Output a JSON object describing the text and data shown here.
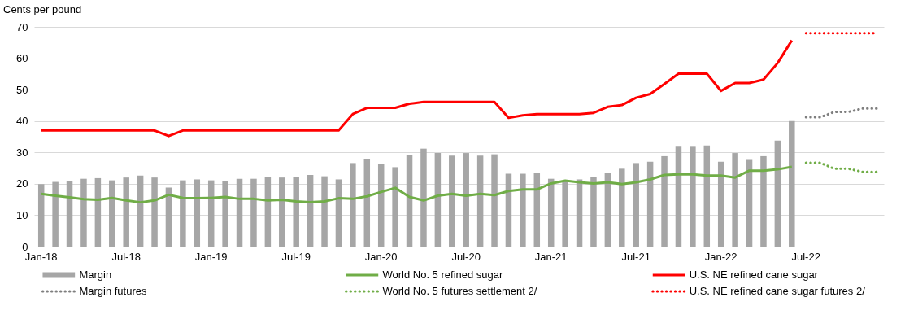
{
  "chart_data": {
    "type": "bar",
    "ylabel": "Cents per pound",
    "categories": [
      "Jan-18",
      null,
      null,
      null,
      null,
      null,
      "Jul-18",
      null,
      null,
      null,
      null,
      null,
      "Jan-19",
      null,
      null,
      null,
      null,
      null,
      "Jul-19",
      null,
      null,
      null,
      null,
      null,
      "Jan-20",
      null,
      null,
      null,
      null,
      null,
      "Jul-20",
      null,
      null,
      null,
      null,
      null,
      "Jan-21",
      null,
      null,
      null,
      null,
      null,
      "Jul-21",
      null,
      null,
      null,
      null,
      null,
      "Jan-22",
      null,
      null,
      null,
      null,
      null,
      "Jul-22",
      null,
      null,
      null,
      null,
      null
    ],
    "ylim": [
      0,
      70
    ],
    "yticks": [
      0,
      10,
      20,
      30,
      40,
      50,
      60,
      70
    ],
    "grid": "y",
    "legend": "bottom",
    "series": [
      {
        "name": "Margin",
        "type": "bar",
        "color": "#a6a6a6",
        "values": [
          19.9,
          20.6,
          21.0,
          21.6,
          21.8,
          21.1,
          22.0,
          22.6,
          22.0,
          18.8,
          21.1,
          21.4,
          21.1,
          21.0,
          21.6,
          21.6,
          22.1,
          22.0,
          22.1,
          22.8,
          22.4,
          21.4,
          26.6,
          27.8,
          26.3,
          25.3,
          29.2,
          31.2,
          29.8,
          29.0,
          29.8,
          29.0,
          29.4,
          23.2,
          23.2,
          23.6,
          21.6,
          21.0,
          21.4,
          22.2,
          23.6,
          24.8,
          26.6,
          27.0,
          28.8,
          31.8,
          31.8,
          32.2,
          27.0,
          29.8,
          27.6,
          28.8,
          33.8,
          40.0,
          null,
          null,
          null,
          null,
          null,
          null
        ]
      },
      {
        "name": "World No. 5 refined sugar",
        "type": "line",
        "line_style": "solid",
        "color": "#70ad47",
        "values": [
          16.8,
          16.2,
          15.7,
          15.1,
          14.9,
          15.5,
          14.7,
          14.1,
          14.7,
          16.5,
          15.5,
          15.4,
          15.5,
          15.8,
          15.2,
          15.2,
          14.7,
          14.9,
          14.4,
          14.1,
          14.4,
          15.4,
          15.2,
          16.0,
          17.4,
          18.7,
          15.8,
          14.7,
          16.2,
          16.8,
          16.2,
          16.8,
          16.4,
          17.7,
          18.2,
          18.2,
          20.1,
          21.0,
          20.5,
          20.1,
          20.5,
          19.9,
          20.5,
          21.4,
          22.8,
          23.0,
          23.0,
          22.6,
          22.6,
          22.0,
          24.2,
          24.2,
          24.6,
          25.4,
          null,
          null,
          null,
          null,
          null,
          null
        ]
      },
      {
        "name": "U.S. NE refined cane sugar",
        "type": "line",
        "line_style": "solid",
        "color": "#ff0000",
        "values": [
          37,
          37,
          37,
          37,
          37,
          37,
          37,
          37,
          37,
          35.2,
          37,
          37,
          37,
          37,
          37,
          37,
          37,
          37,
          37,
          37,
          37,
          37,
          42.2,
          44.2,
          44.2,
          44.2,
          45.5,
          46.1,
          46.1,
          46.1,
          46.1,
          46.1,
          46.1,
          41.0,
          41.8,
          42.2,
          42.2,
          42.2,
          42.2,
          42.6,
          44.5,
          45.1,
          47.4,
          48.6,
          51.8,
          55.1,
          55.1,
          55.1,
          49.6,
          52.1,
          52.1,
          53.2,
          58.5,
          65.7,
          null,
          null,
          null,
          null,
          null,
          null
        ]
      },
      {
        "name": "Margin futures",
        "type": "line",
        "line_style": "dotted",
        "color": "#7f7f7f",
        "values": [
          null,
          null,
          null,
          null,
          null,
          null,
          null,
          null,
          null,
          null,
          null,
          null,
          null,
          null,
          null,
          null,
          null,
          null,
          null,
          null,
          null,
          null,
          null,
          null,
          null,
          null,
          null,
          null,
          null,
          null,
          null,
          null,
          null,
          null,
          null,
          null,
          null,
          null,
          null,
          null,
          null,
          null,
          null,
          null,
          null,
          null,
          null,
          null,
          null,
          null,
          null,
          null,
          null,
          null,
          41.2,
          41.2,
          42.9,
          42.9,
          44.0,
          44.0
        ]
      },
      {
        "name": "World No. 5 futures settlement 2/",
        "type": "line",
        "line_style": "dotted",
        "color": "#70ad47",
        "values": [
          null,
          null,
          null,
          null,
          null,
          null,
          null,
          null,
          null,
          null,
          null,
          null,
          null,
          null,
          null,
          null,
          null,
          null,
          null,
          null,
          null,
          null,
          null,
          null,
          null,
          null,
          null,
          null,
          null,
          null,
          null,
          null,
          null,
          null,
          null,
          null,
          null,
          null,
          null,
          null,
          null,
          null,
          null,
          null,
          null,
          null,
          null,
          null,
          null,
          null,
          null,
          null,
          null,
          null,
          26.7,
          26.7,
          24.8,
          24.8,
          23.8,
          23.8
        ]
      },
      {
        "name": "U.S. NE refined cane sugar futures 2/",
        "type": "line",
        "line_style": "dotted",
        "color": "#ff0000",
        "values": [
          null,
          null,
          null,
          null,
          null,
          null,
          null,
          null,
          null,
          null,
          null,
          null,
          null,
          null,
          null,
          null,
          null,
          null,
          null,
          null,
          null,
          null,
          null,
          null,
          null,
          null,
          null,
          null,
          null,
          null,
          null,
          null,
          null,
          null,
          null,
          null,
          null,
          null,
          null,
          null,
          null,
          null,
          null,
          null,
          null,
          null,
          null,
          null,
          null,
          null,
          null,
          null,
          null,
          null,
          68.0,
          68.0,
          68.0,
          68.0,
          68.0,
          68.0
        ]
      }
    ]
  }
}
